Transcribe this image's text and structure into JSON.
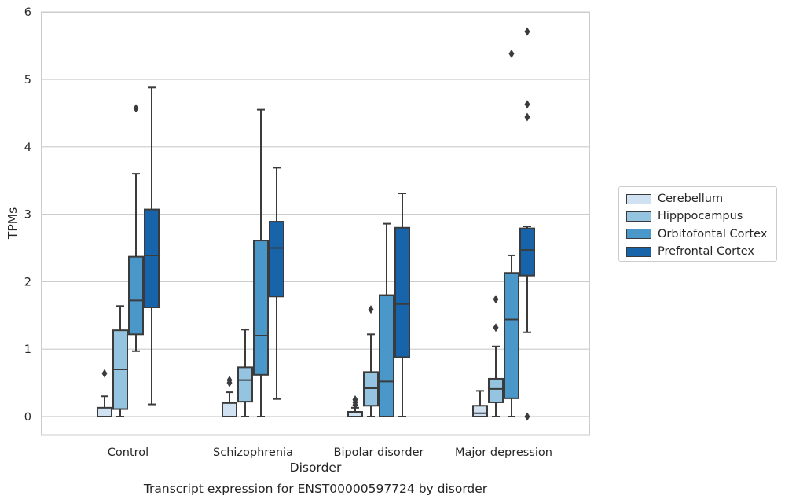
{
  "chart_data": {
    "type": "box",
    "caption": "Transcript expression for ENST00000597724 by disorder",
    "xlabel": "Disorder",
    "ylabel": "TPMs",
    "ylim": [
      -0.27,
      6
    ],
    "yticks": [
      0,
      1,
      2,
      3,
      4,
      5,
      6
    ],
    "grid": "horizontal",
    "legend_position": "right",
    "categories": [
      "Control",
      "Schizophrenia",
      "Bipolar disorder",
      "Major depression"
    ],
    "series": [
      {
        "name": "Cerebellum",
        "color": "#d0e1f2",
        "boxes": [
          {
            "whislo": 0,
            "q1": 0,
            "med": 0,
            "q3": 0.13,
            "whishi": 0.3,
            "fliers": [
              0.64
            ]
          },
          {
            "whislo": 0,
            "q1": 0,
            "med": 0,
            "q3": 0.2,
            "whishi": 0.36,
            "fliers": [
              0.5,
              0.54
            ]
          },
          {
            "whislo": 0,
            "q1": 0,
            "med": 0,
            "q3": 0.07,
            "whishi": 0.13,
            "fliers": [
              0.17,
              0.21,
              0.25
            ]
          },
          {
            "whislo": 0,
            "q1": 0,
            "med": 0.05,
            "q3": 0.16,
            "whishi": 0.38,
            "fliers": []
          }
        ]
      },
      {
        "name": "Hipppocampus",
        "color": "#94c4df",
        "boxes": [
          {
            "whislo": 0,
            "q1": 0.11,
            "med": 0.7,
            "q3": 1.28,
            "whishi": 1.64,
            "fliers": []
          },
          {
            "whislo": 0,
            "q1": 0.22,
            "med": 0.54,
            "q3": 0.73,
            "whishi": 1.29,
            "fliers": []
          },
          {
            "whislo": 0,
            "q1": 0.16,
            "med": 0.42,
            "q3": 0.66,
            "whishi": 1.22,
            "fliers": [
              1.59
            ]
          },
          {
            "whislo": 0,
            "q1": 0.21,
            "med": 0.41,
            "q3": 0.56,
            "whishi": 1.04,
            "fliers": [
              1.32,
              1.74
            ]
          }
        ]
      },
      {
        "name": "Orbitofontal Cortex",
        "color": "#4a98c9",
        "boxes": [
          {
            "whislo": 0.97,
            "q1": 1.22,
            "med": 1.72,
            "q3": 2.37,
            "whishi": 3.6,
            "fliers": [
              4.57
            ]
          },
          {
            "whislo": 0,
            "q1": 0.62,
            "med": 1.2,
            "q3": 2.61,
            "whishi": 4.55,
            "fliers": []
          },
          {
            "whislo": 0,
            "q1": 0,
            "med": 0.52,
            "q3": 1.8,
            "whishi": 2.86,
            "fliers": []
          },
          {
            "whislo": 0,
            "q1": 0.27,
            "med": 1.44,
            "q3": 2.13,
            "whishi": 2.39,
            "fliers": [
              5.38
            ]
          }
        ]
      },
      {
        "name": "Prefrontal Cortex",
        "color": "#1764ab",
        "boxes": [
          {
            "whislo": 0.18,
            "q1": 1.62,
            "med": 2.39,
            "q3": 3.07,
            "whishi": 4.88,
            "fliers": []
          },
          {
            "whislo": 0.26,
            "q1": 1.78,
            "med": 2.5,
            "q3": 2.89,
            "whishi": 3.69,
            "fliers": []
          },
          {
            "whislo": 0,
            "q1": 0.88,
            "med": 1.67,
            "q3": 2.8,
            "whishi": 3.31,
            "fliers": []
          },
          {
            "whislo": 1.25,
            "q1": 2.09,
            "med": 2.47,
            "q3": 2.79,
            "whishi": 2.82,
            "fliers": [
              0,
              4.44,
              4.63,
              5.71
            ]
          }
        ]
      }
    ]
  }
}
